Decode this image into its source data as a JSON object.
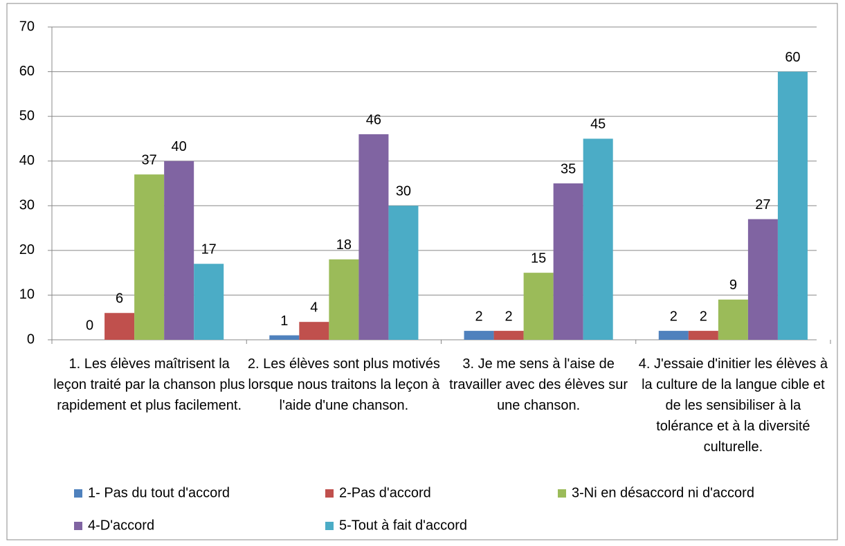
{
  "chart_data": {
    "type": "bar",
    "categories": [
      "1. Les élèves maîtrisent la leçon traité par la chanson plus rapidement et plus facilement.",
      "2. Les élèves sont plus motivés lorsque nous traitons la leçon à l'aide d'une chanson.",
      "3. Je me sens à l'aise de travailler avec des élèves sur une chanson.",
      "4. J'essaie d'initier les élèves à la culture de la langue cible et de les sensibiliser à la tolérance et à la diversité culturelle."
    ],
    "series": [
      {
        "name": "1- Pas du tout d'accord",
        "color": "#4f81bd",
        "values": [
          0,
          1,
          2,
          2
        ]
      },
      {
        "name": "2-Pas d'accord",
        "color": "#c0504d",
        "values": [
          6,
          4,
          2,
          2
        ]
      },
      {
        "name": "3-Ni en désaccord ni d'accord",
        "color": "#9bbb59",
        "values": [
          37,
          18,
          15,
          9
        ]
      },
      {
        "name": "4-D'accord",
        "color": "#8064a2",
        "values": [
          40,
          46,
          35,
          27
        ]
      },
      {
        "name": "5-Tout à fait d'accord",
        "color": "#4bacc6",
        "values": [
          17,
          30,
          45,
          60
        ]
      }
    ],
    "ylim": [
      0,
      70
    ],
    "yticks": [
      0,
      10,
      20,
      30,
      40,
      50,
      60,
      70
    ],
    "grid": true,
    "legend": "bottom"
  }
}
